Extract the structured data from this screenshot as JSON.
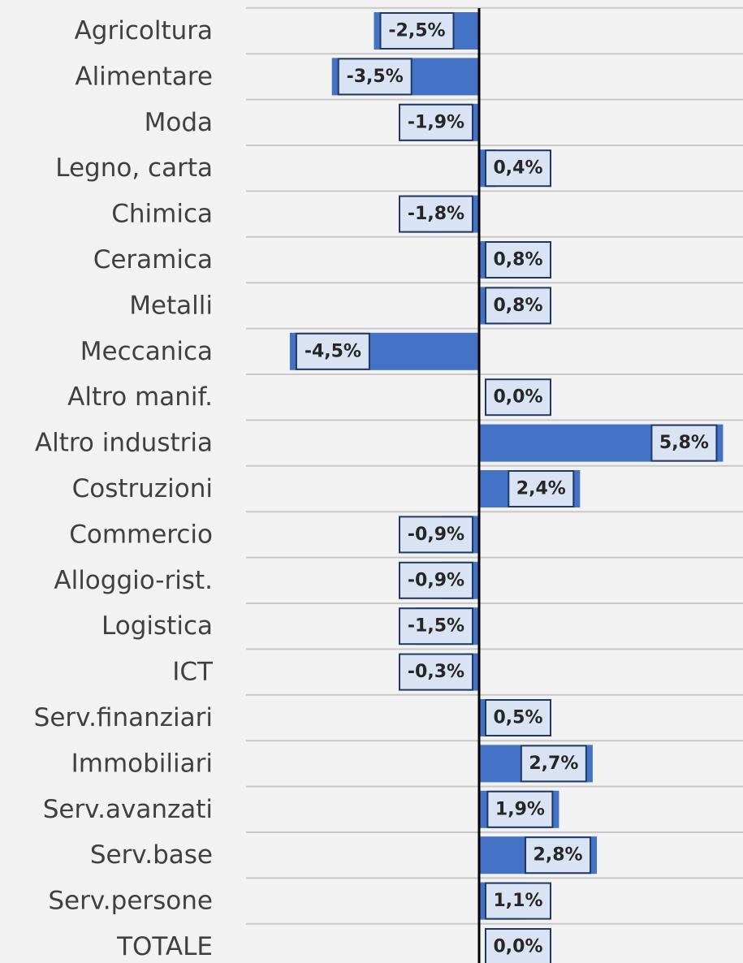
{
  "chart_data": {
    "type": "bar",
    "orientation": "horizontal",
    "color": "#4472c4",
    "categories": [
      "Agricoltura",
      "Alimentare",
      "Moda",
      "Legno, carta",
      "Chimica",
      "Ceramica",
      "Metalli",
      "Meccanica",
      "Altro manif.",
      "Altro industria",
      "Costruzioni",
      "Commercio",
      "Alloggio-rist.",
      "Logistica",
      "ICT",
      "Serv.finanziari",
      "Immobiliari",
      "Serv.avanzati",
      "Serv.base",
      "Serv.persone",
      "TOTALE"
    ],
    "values": [
      -2.5,
      -3.5,
      -1.9,
      0.4,
      -1.8,
      0.8,
      0.8,
      -4.5,
      0.0,
      5.8,
      2.4,
      -0.9,
      -0.9,
      -1.5,
      -0.3,
      0.5,
      2.7,
      1.9,
      2.8,
      1.1,
      0.0
    ],
    "value_labels": [
      "-2,5%",
      "-3,5%",
      "-1,9%",
      "0,4%",
      "-1,8%",
      "0,8%",
      "0,8%",
      "-4,5%",
      "0,0%",
      "5,8%",
      "2,4%",
      "-0,9%",
      "-0,9%",
      "-1,5%",
      "-0,3%",
      "0,5%",
      "2,7%",
      "1,9%",
      "2,8%",
      "1,1%",
      "0,0%"
    ]
  }
}
